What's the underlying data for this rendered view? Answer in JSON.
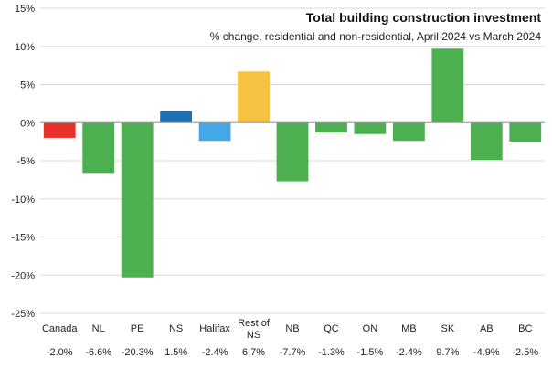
{
  "chart_data": {
    "type": "bar",
    "title": "Total building construction  investment",
    "subtitle": "% change, residential and non-residential, April 2024 vs March 2024",
    "xlabel": "",
    "ylabel": "",
    "ylim": [
      -25,
      15
    ],
    "yticks": [
      15,
      10,
      5,
      0,
      -5,
      -10,
      -15,
      -20,
      -25
    ],
    "ytick_labels": [
      "15%",
      "10%",
      "5%",
      "0%",
      "-5%",
      "-10%",
      "-15%",
      "-20%",
      "-25%"
    ],
    "grid": true,
    "legend": "none",
    "categories": [
      {
        "lines": [
          "Canada"
        ]
      },
      {
        "lines": [
          "NL"
        ]
      },
      {
        "lines": [
          "PE"
        ]
      },
      {
        "lines": [
          "NS"
        ]
      },
      {
        "lines": [
          "Halifax"
        ]
      },
      {
        "lines": [
          "Rest of",
          "NS"
        ]
      },
      {
        "lines": [
          "NB"
        ]
      },
      {
        "lines": [
          "QC"
        ]
      },
      {
        "lines": [
          "ON"
        ]
      },
      {
        "lines": [
          "MB"
        ]
      },
      {
        "lines": [
          "SK"
        ]
      },
      {
        "lines": [
          "AB"
        ]
      },
      {
        "lines": [
          "BC"
        ]
      }
    ],
    "values": [
      -2.0,
      -6.6,
      -20.3,
      1.5,
      -2.4,
      6.7,
      -7.7,
      -1.3,
      -1.5,
      -2.4,
      9.7,
      -4.9,
      -2.5
    ],
    "value_labels": [
      "-2.0%",
      "-6.6%",
      "-20.3%",
      "1.5%",
      "-2.4%",
      "6.7%",
      "-7.7%",
      "-1.3%",
      "-1.5%",
      "-2.4%",
      "9.7%",
      "-4.9%",
      "-2.5%"
    ],
    "colors": [
      "#e8312a",
      "#4caf50",
      "#4caf50",
      "#1f6fb5",
      "#45a6e8",
      "#f5c242",
      "#4caf50",
      "#4caf50",
      "#4caf50",
      "#4caf50",
      "#4caf50",
      "#4caf50",
      "#4caf50"
    ]
  }
}
